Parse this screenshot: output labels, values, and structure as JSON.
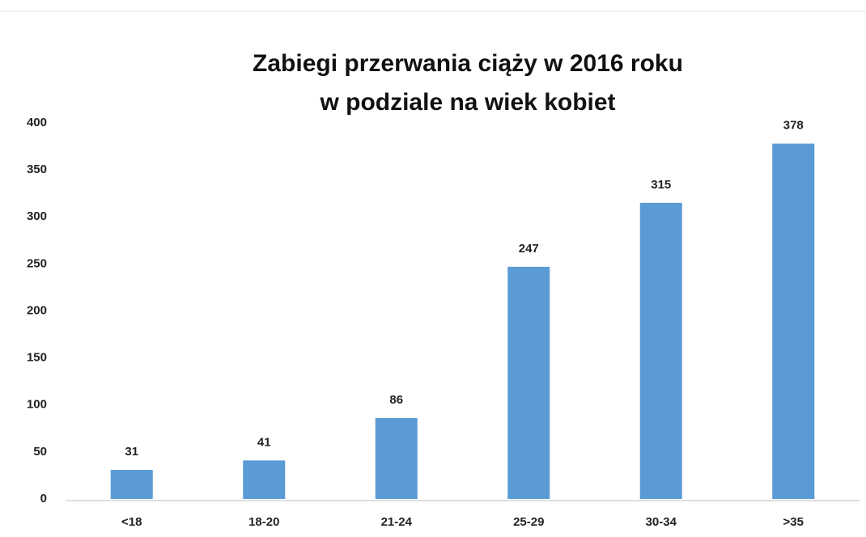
{
  "chart_data": {
    "type": "bar",
    "title": [
      "Zabiegi przerwania ciąży w 2016 roku",
      "w podziale na wiek kobiet"
    ],
    "categories": [
      "<18",
      "18-20",
      "21-24",
      "25-29",
      "30-34",
      ">35"
    ],
    "values": [
      31,
      41,
      86,
      247,
      315,
      378
    ],
    "color": "#5b9bd5",
    "ylim": [
      0,
      400
    ],
    "yticks": [
      0,
      50,
      100,
      150,
      200,
      250,
      300,
      350,
      400
    ],
    "grid": false
  }
}
